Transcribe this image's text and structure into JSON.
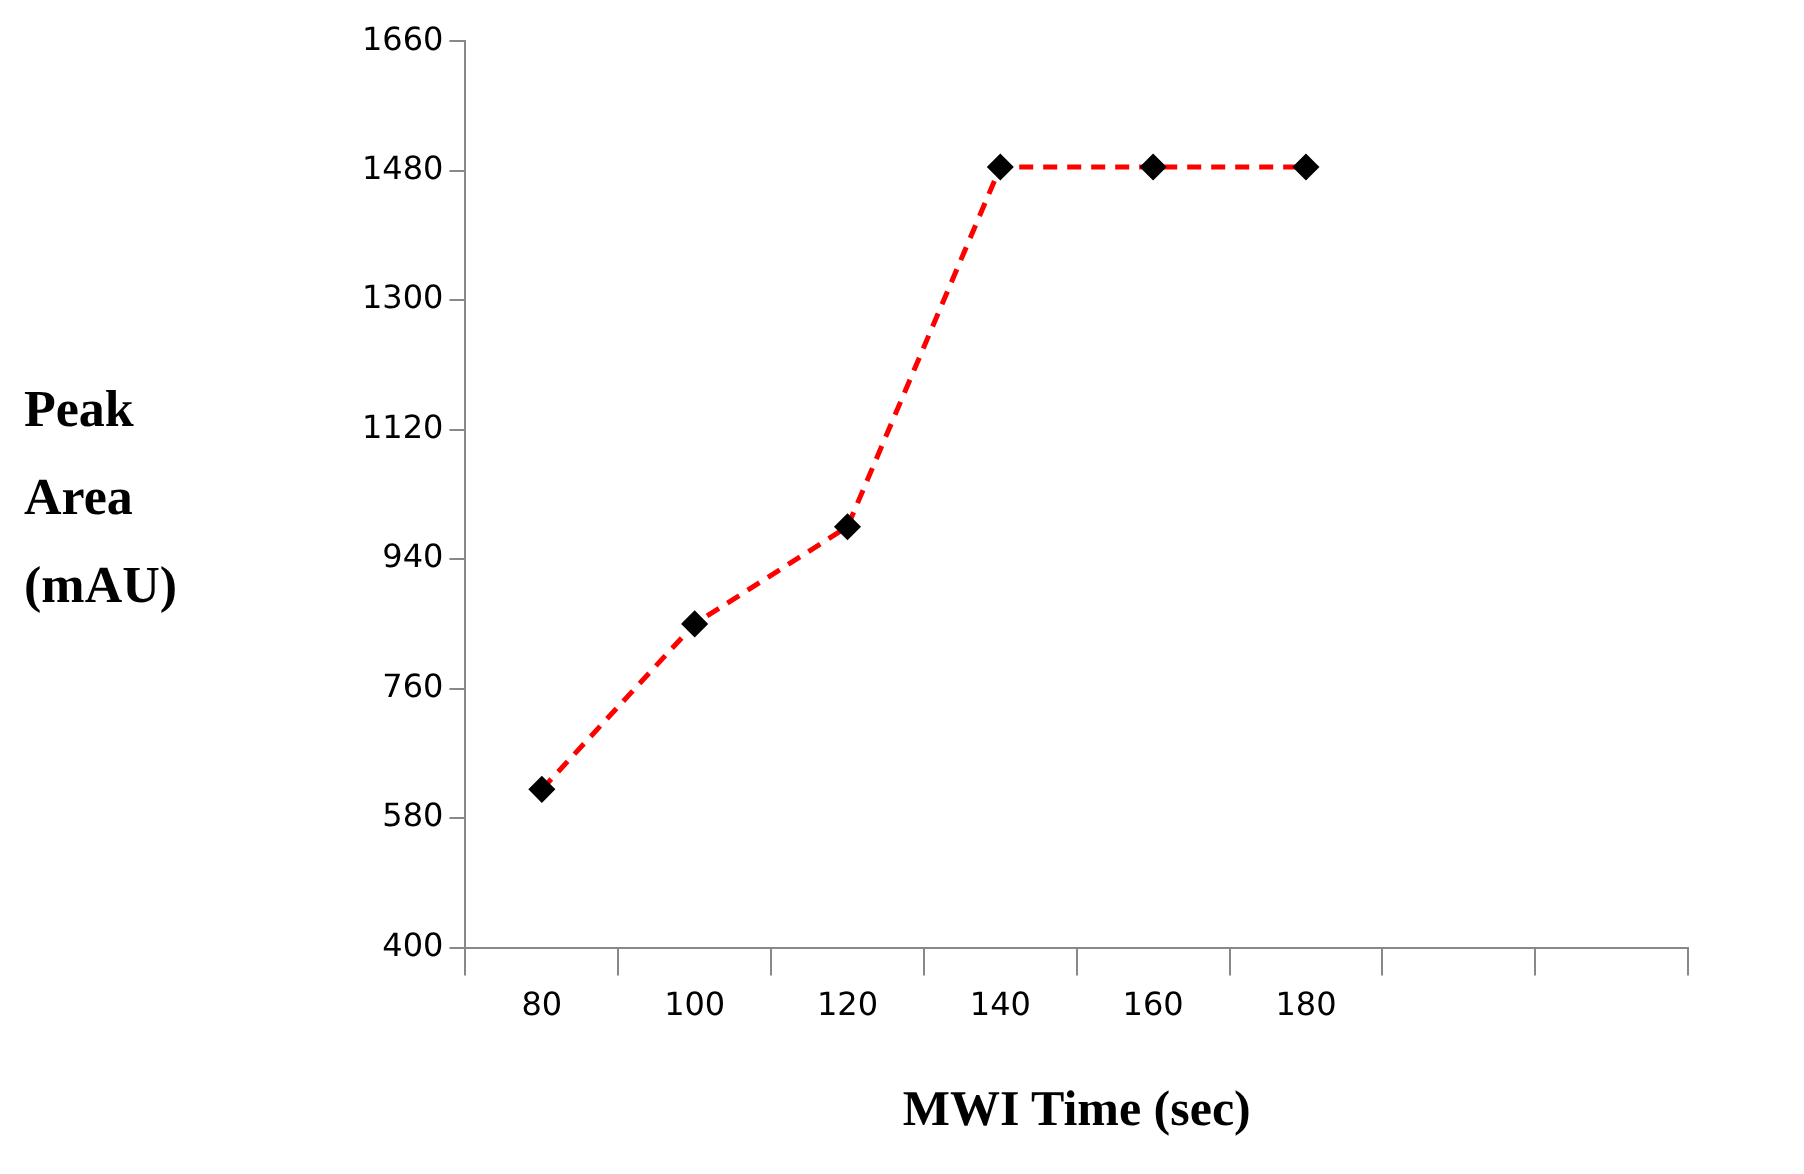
{
  "chart_data": {
    "type": "line",
    "xlabel": "MWI Time (sec)",
    "ylabel": "Peak Area (mAU)",
    "categories": [
      "80",
      "100",
      "120",
      "140",
      "160",
      "180",
      null,
      null
    ],
    "series": [
      {
        "color": "#ff0000",
        "values": [
          620,
          850,
          985,
          1485,
          1485,
          1485,
          null,
          null
        ]
      }
    ],
    "ylim": [
      400,
      1660
    ],
    "yticks": [
      400,
      580,
      760,
      940,
      1120,
      1300,
      1480,
      1660
    ],
    "marker": "diamond",
    "line_style": "dashed"
  }
}
